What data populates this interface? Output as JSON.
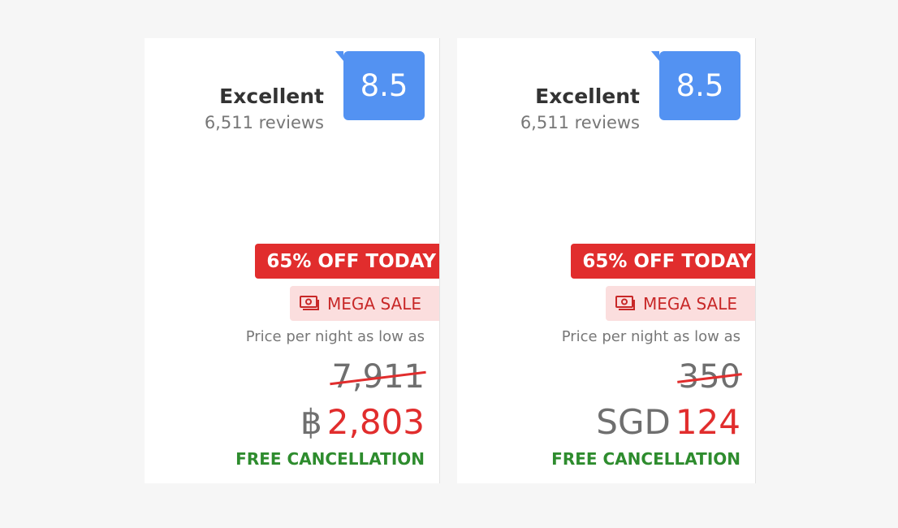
{
  "cards": [
    {
      "rating_label": "Excellent",
      "reviews": "6,511 reviews",
      "score": "8.5",
      "discount": "65% OFF TODAY",
      "promo": "MEGA SALE",
      "price_label": "Price per night as low as",
      "original_price": "7,911",
      "currency": "฿",
      "price": "2,803",
      "cancellation": "FREE CANCELLATION"
    },
    {
      "rating_label": "Excellent",
      "reviews": "6,511 reviews",
      "score": "8.5",
      "discount": "65% OFF TODAY",
      "promo": "MEGA SALE",
      "price_label": "Price per night as low as",
      "original_price": "350",
      "currency": "SGD",
      "price": "124",
      "cancellation": "FREE CANCELLATION"
    }
  ],
  "colors": {
    "score_bg": "#5392f2",
    "discount_bg": "#e12d2d",
    "promo_bg": "#fbdede",
    "price": "#e12d2d",
    "cancellation": "#2e8c2e"
  },
  "icons": {
    "promo": "money-stack-icon"
  }
}
